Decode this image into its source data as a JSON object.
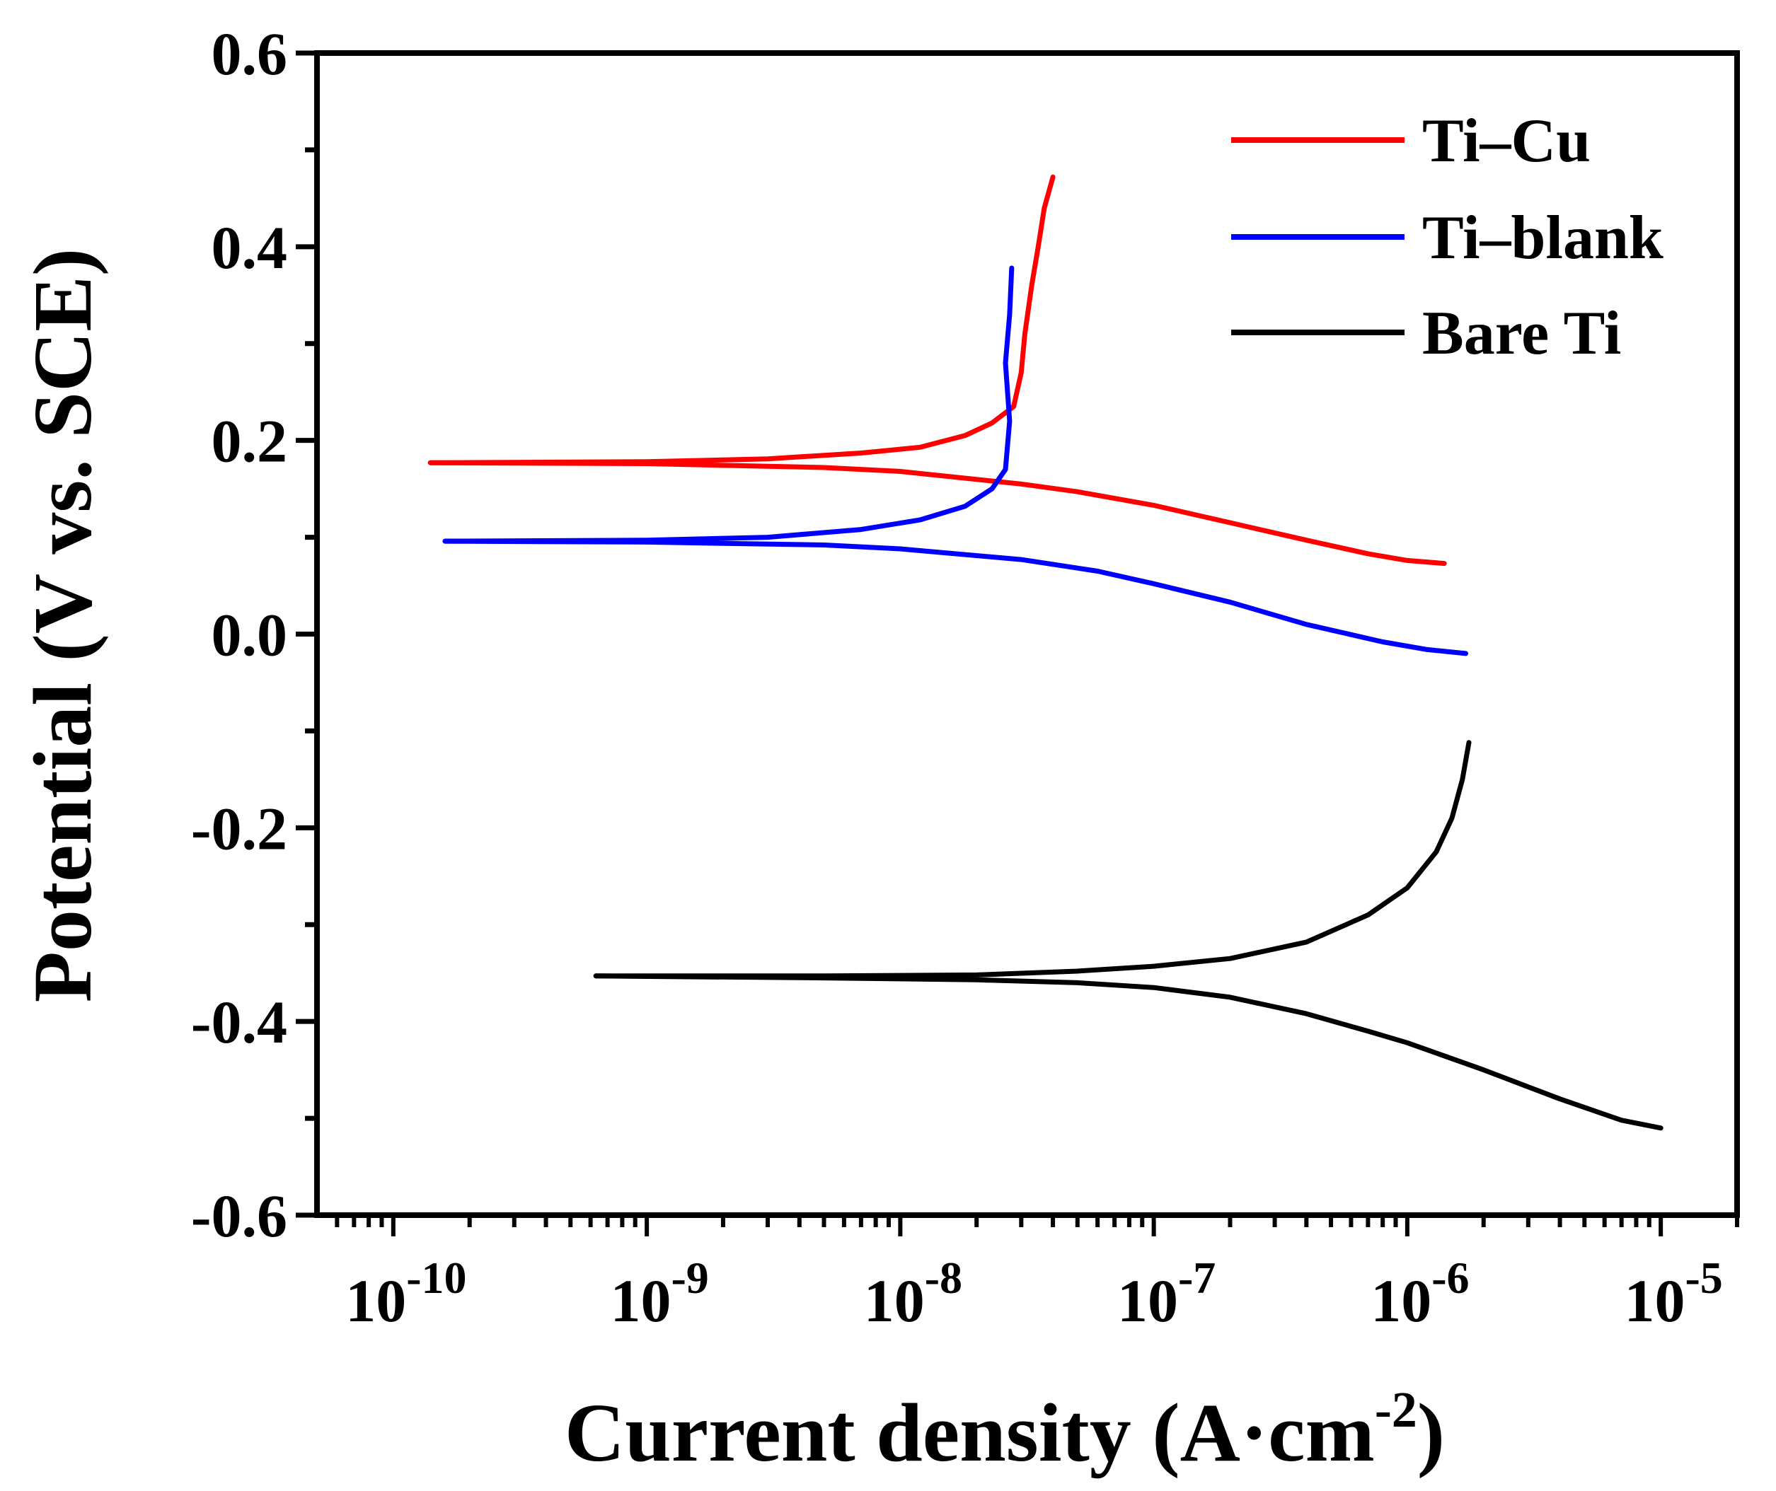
{
  "chart_data": {
    "type": "line",
    "xscale": "log",
    "xlim": [
      5e-11,
      2e-05
    ],
    "ylim": [
      -0.6,
      0.6
    ],
    "xlabel": "Current density (A·cm",
    "xlabel_sup": "-2",
    "xlabel_end": ")",
    "ylabel": "Potential (V vs. SCE)",
    "x_ticks": [
      {
        "mantissa": "10",
        "exp": "-10",
        "value": 1e-10
      },
      {
        "mantissa": "10",
        "exp": "-9",
        "value": 1e-09
      },
      {
        "mantissa": "10",
        "exp": "-8",
        "value": 1e-08
      },
      {
        "mantissa": "10",
        "exp": "-7",
        "value": 1e-07
      },
      {
        "mantissa": "10",
        "exp": "-6",
        "value": 1e-06
      },
      {
        "mantissa": "10",
        "exp": "-5",
        "value": 1e-05
      }
    ],
    "y_ticks": [
      {
        "label": "0.6",
        "value": 0.6
      },
      {
        "label": "0.4",
        "value": 0.4
      },
      {
        "label": "0.2",
        "value": 0.2
      },
      {
        "label": "0.0",
        "value": 0.0
      },
      {
        "label": "-0.2",
        "value": -0.2
      },
      {
        "label": "-0.4",
        "value": -0.4
      },
      {
        "label": "-0.6",
        "value": -0.6
      }
    ],
    "legend_position": "top-right",
    "series": [
      {
        "name": "Ti–Cu",
        "color": "#ff0000",
        "cathodic": [
          [
            1.4e-10,
            0.177
          ],
          [
            1e-09,
            0.176
          ],
          [
            5e-09,
            0.172
          ],
          [
            1e-08,
            0.168
          ],
          [
            3e-08,
            0.155
          ],
          [
            5e-08,
            0.147
          ],
          [
            1e-07,
            0.133
          ],
          [
            2e-07,
            0.115
          ],
          [
            4e-07,
            0.097
          ],
          [
            7e-07,
            0.083
          ],
          [
            1e-06,
            0.076
          ],
          [
            1.4e-06,
            0.073
          ]
        ],
        "anodic": [
          [
            1.4e-10,
            0.177
          ],
          [
            1e-09,
            0.178
          ],
          [
            3e-09,
            0.181
          ],
          [
            7e-09,
            0.187
          ],
          [
            1.2e-08,
            0.193
          ],
          [
            1.8e-08,
            0.205
          ],
          [
            2.3e-08,
            0.218
          ],
          [
            2.8e-08,
            0.235
          ],
          [
            3e-08,
            0.27
          ],
          [
            3.1e-08,
            0.31
          ],
          [
            3.3e-08,
            0.36
          ],
          [
            3.5e-08,
            0.4
          ],
          [
            3.7e-08,
            0.44
          ],
          [
            4e-08,
            0.472
          ]
        ]
      },
      {
        "name": "Ti–blank",
        "color": "#0000ff",
        "cathodic": [
          [
            1.6e-10,
            0.096
          ],
          [
            1e-09,
            0.095
          ],
          [
            5e-09,
            0.092
          ],
          [
            1e-08,
            0.088
          ],
          [
            3e-08,
            0.077
          ],
          [
            6e-08,
            0.065
          ],
          [
            1e-07,
            0.052
          ],
          [
            2e-07,
            0.033
          ],
          [
            4e-07,
            0.01
          ],
          [
            8e-07,
            -0.008
          ],
          [
            1.2e-06,
            -0.016
          ],
          [
            1.7e-06,
            -0.02
          ]
        ],
        "anodic": [
          [
            1.6e-10,
            0.096
          ],
          [
            1e-09,
            0.097
          ],
          [
            3e-09,
            0.1
          ],
          [
            7e-09,
            0.108
          ],
          [
            1.2e-08,
            0.118
          ],
          [
            1.8e-08,
            0.132
          ],
          [
            2.3e-08,
            0.15
          ],
          [
            2.6e-08,
            0.17
          ],
          [
            2.7e-08,
            0.22
          ],
          [
            2.6e-08,
            0.28
          ],
          [
            2.7e-08,
            0.33
          ],
          [
            2.75e-08,
            0.378
          ]
        ]
      },
      {
        "name": "Bare Ti",
        "color": "#000000",
        "cathodic": [
          [
            6.3e-10,
            -0.353
          ],
          [
            5e-09,
            -0.355
          ],
          [
            2e-08,
            -0.357
          ],
          [
            5e-08,
            -0.36
          ],
          [
            1e-07,
            -0.365
          ],
          [
            2e-07,
            -0.375
          ],
          [
            4e-07,
            -0.392
          ],
          [
            7e-07,
            -0.41
          ],
          [
            1e-06,
            -0.422
          ],
          [
            2e-06,
            -0.45
          ],
          [
            4e-06,
            -0.48
          ],
          [
            7e-06,
            -0.502
          ],
          [
            1e-05,
            -0.51
          ]
        ],
        "anodic": [
          [
            6.3e-10,
            -0.353
          ],
          [
            5e-09,
            -0.353
          ],
          [
            2e-08,
            -0.352
          ],
          [
            5e-08,
            -0.348
          ],
          [
            1e-07,
            -0.343
          ],
          [
            2e-07,
            -0.335
          ],
          [
            4e-07,
            -0.318
          ],
          [
            7e-07,
            -0.29
          ],
          [
            1e-06,
            -0.262
          ],
          [
            1.3e-06,
            -0.225
          ],
          [
            1.5e-06,
            -0.19
          ],
          [
            1.65e-06,
            -0.15
          ],
          [
            1.75e-06,
            -0.112
          ]
        ]
      }
    ]
  }
}
